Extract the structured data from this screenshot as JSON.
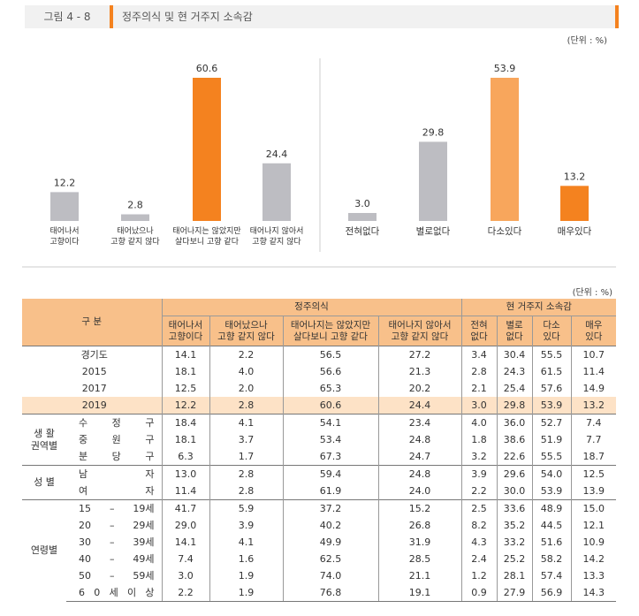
{
  "header": {
    "label": "그림 4 - 8",
    "title": "정주의식 및 현 거주지 소속감"
  },
  "unit": "(단위 : %)",
  "chart_data": [
    {
      "type": "bar",
      "categories": [
        "태어나서\n고향이다",
        "태어났으나\n고향 같지 않다",
        "태어나지는 않았지만\n살다보니 고향 같다",
        "태어나지 않아서\n고향 같지 않다"
      ],
      "values": [
        12.2,
        2.8,
        60.6,
        24.4
      ],
      "value_labels": [
        "12.2",
        "2.8",
        "60.6",
        "24.4"
      ],
      "colors": [
        "#bdbdc2",
        "#bdbdc2",
        "#f4821f",
        "#bdbdc2"
      ]
    },
    {
      "type": "bar",
      "categories": [
        "전혀없다",
        "별로없다",
        "다소있다",
        "매우있다"
      ],
      "values": [
        3.0,
        29.8,
        53.9,
        13.2
      ],
      "value_labels": [
        "3.0",
        "29.8",
        "53.9",
        "13.2"
      ],
      "colors": [
        "#bdbdc2",
        "#bdbdc2",
        "#f8a65c",
        "#f4821f"
      ]
    }
  ],
  "table_unit": "(단위 : %)",
  "table": {
    "corner": "구 분",
    "groups_header": [
      {
        "label": "정주의식",
        "columns": [
          "태어나서\n고향이다",
          "태어났으나\n고향 같지 않다",
          "태어나지는 않았지만\n살다보니 고향 같다",
          "태어나지 않아서\n고향 같지 않다"
        ]
      },
      {
        "label": "현 거주지 소속감",
        "columns": [
          "전혀\n없다",
          "별로\n없다",
          "다소\n있다",
          "매우\n있다"
        ]
      }
    ],
    "groups": [
      {
        "label": null,
        "rows": [
          {
            "label": "경기도",
            "values": [
              "14.1",
              "2.2",
              "56.5",
              "27.2",
              "3.4",
              "30.4",
              "55.5",
              "10.7"
            ]
          },
          {
            "label": "2015",
            "values": [
              "18.1",
              "4.0",
              "56.6",
              "21.3",
              "2.8",
              "24.3",
              "61.5",
              "11.4"
            ]
          },
          {
            "label": "2017",
            "values": [
              "12.5",
              "2.0",
              "65.3",
              "20.2",
              "2.1",
              "25.4",
              "57.6",
              "14.9"
            ]
          },
          {
            "label": "2019",
            "highlight": true,
            "values": [
              "12.2",
              "2.8",
              "60.6",
              "24.4",
              "3.0",
              "29.8",
              "53.9",
              "13.2"
            ]
          }
        ]
      },
      {
        "label": "생 활\n권역별",
        "rows": [
          {
            "label": "수 정 구",
            "values": [
              "18.4",
              "4.1",
              "54.1",
              "23.4",
              "4.0",
              "36.0",
              "52.7",
              "7.4"
            ]
          },
          {
            "label": "중 원 구",
            "values": [
              "18.1",
              "3.7",
              "53.4",
              "24.8",
              "1.8",
              "38.6",
              "51.9",
              "7.7"
            ]
          },
          {
            "label": "분 당 구",
            "values": [
              "6.3",
              "1.7",
              "67.3",
              "24.7",
              "3.2",
              "22.6",
              "55.5",
              "18.7"
            ]
          }
        ]
      },
      {
        "label": "성 별",
        "rows": [
          {
            "label": "남 자",
            "values": [
              "13.0",
              "2.8",
              "59.4",
              "24.8",
              "3.9",
              "29.6",
              "54.0",
              "12.5"
            ]
          },
          {
            "label": "여 자",
            "values": [
              "11.4",
              "2.8",
              "61.9",
              "24.0",
              "2.2",
              "30.0",
              "53.9",
              "13.9"
            ]
          }
        ]
      },
      {
        "label": "연령별",
        "rows": [
          {
            "label": "15 – 19세",
            "values": [
              "41.7",
              "5.9",
              "37.2",
              "15.2",
              "2.5",
              "33.6",
              "48.9",
              "15.0"
            ]
          },
          {
            "label": "20 – 29세",
            "values": [
              "29.0",
              "3.9",
              "40.2",
              "26.8",
              "8.2",
              "35.2",
              "44.5",
              "12.1"
            ]
          },
          {
            "label": "30 – 39세",
            "values": [
              "14.1",
              "4.1",
              "49.9",
              "31.9",
              "4.3",
              "33.2",
              "51.6",
              "10.9"
            ]
          },
          {
            "label": "40 – 49세",
            "values": [
              "7.4",
              "1.6",
              "62.5",
              "28.5",
              "2.4",
              "25.2",
              "58.2",
              "14.2"
            ]
          },
          {
            "label": "50 – 59세",
            "values": [
              "3.0",
              "1.9",
              "74.0",
              "21.1",
              "1.2",
              "28.1",
              "57.4",
              "13.3"
            ]
          },
          {
            "label": "6 0 세 이 상",
            "values": [
              "2.2",
              "1.9",
              "76.8",
              "19.1",
              "0.9",
              "27.9",
              "56.9",
              "14.3"
            ]
          }
        ]
      }
    ]
  }
}
